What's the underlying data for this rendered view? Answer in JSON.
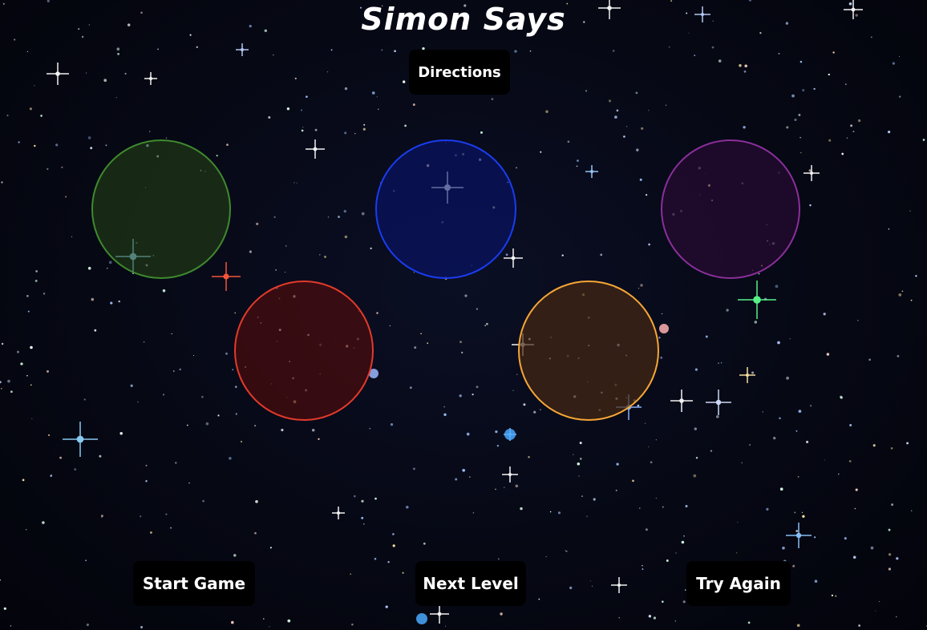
{
  "game": {
    "title": "Simon Says"
  },
  "buttons": {
    "directions": "Directions",
    "start": "Start Game",
    "next": "Next Level",
    "retry": "Try Again"
  },
  "pads": {
    "green": {
      "color": "#3f8a2e"
    },
    "blue": {
      "color": "#1a3cf0"
    },
    "purple": {
      "color": "#8a2f9a"
    },
    "red": {
      "color": "#e33a2a"
    },
    "orange": {
      "color": "#f6a636"
    }
  }
}
